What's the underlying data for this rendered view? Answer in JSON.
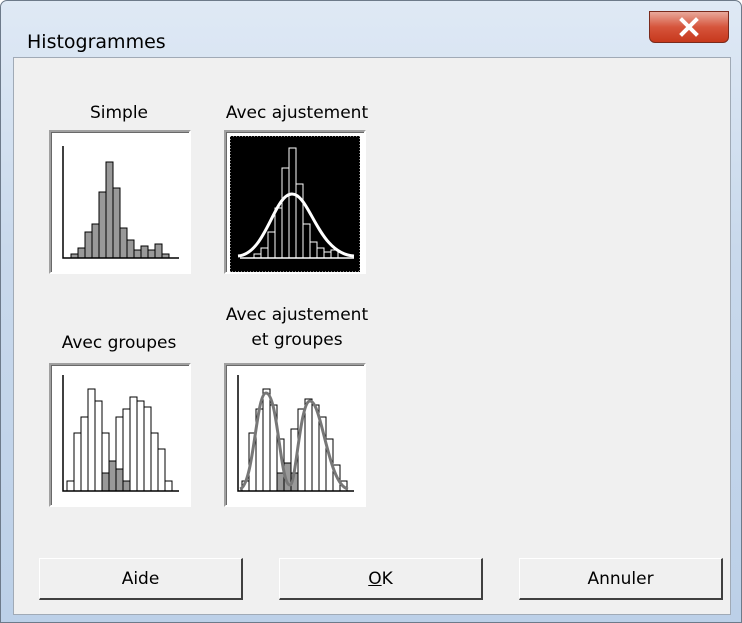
{
  "window": {
    "title": "Histogrammes"
  },
  "options": [
    {
      "label": "Simple"
    },
    {
      "label": "Avec ajustement"
    },
    {
      "label": "Avec groupes"
    },
    {
      "label": "Avec ajustement\net groupes"
    }
  ],
  "buttons": [
    {
      "label": "Aide"
    },
    {
      "label": "OK"
    },
    {
      "label": "Annuler"
    }
  ]
}
